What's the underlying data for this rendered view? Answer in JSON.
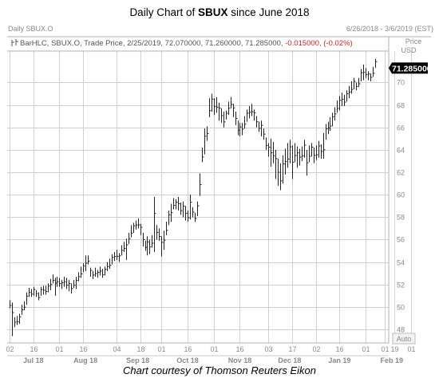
{
  "header": {
    "title_prefix": "Daily Chart of ",
    "title_ticker": "SBUX",
    "title_suffix": " since June 2018",
    "date_range": "6/26/2018 - 3/6/2019 (EST)",
    "symbol_label": "Daily SBUX.O"
  },
  "axis": {
    "price_label": "Price",
    "currency": "USD",
    "auto_label": "Auto",
    "last_price": "71.285000"
  },
  "caption": "Chart courtesy of Thomson Reuters Eikon",
  "colors": {
    "bars": "#222222",
    "grid": "#d0d0d0",
    "last_price_badge": "#000000",
    "negative": "#e02020"
  },
  "chart_data": {
    "type": "ohlc",
    "title": "Daily Chart of SBUX since June 2018",
    "legend": {
      "icon": "bar-hlc-icon",
      "prefix": "BarHLC, SBUX.O, Trade Price, 2/25/2019, 72.070000, 71.260000, 71.285000, ",
      "change": "-0.015000, (-0.02%)"
    },
    "ylim": [
      46.8,
      72.8
    ],
    "y_ticks": [
      48,
      50,
      52,
      54,
      56,
      58,
      60,
      62,
      64,
      66,
      68,
      70
    ],
    "y_tick_labels": [
      "48",
      "50",
      "52",
      "54",
      "56",
      "58",
      "60",
      "62",
      "64",
      "66",
      "68",
      "70"
    ],
    "x_day_ticks": [
      {
        "label": "02",
        "x": 0
      },
      {
        "label": "16",
        "x": 10
      },
      {
        "label": "01",
        "x": 21
      },
      {
        "label": "16",
        "x": 31
      },
      {
        "label": "04",
        "x": 45
      },
      {
        "label": "18",
        "x": 55
      },
      {
        "label": "01",
        "x": 64
      },
      {
        "label": "16",
        "x": 75
      },
      {
        "label": "01",
        "x": 86
      },
      {
        "label": "16",
        "x": 97
      },
      {
        "label": "03",
        "x": 109
      },
      {
        "label": "17",
        "x": 119
      },
      {
        "label": "02",
        "x": 129
      },
      {
        "label": "16",
        "x": 139
      },
      {
        "label": "01",
        "x": 150
      },
      {
        "label": "19",
        "x": 162
      },
      {
        "label": "01",
        "x": 169
      }
    ],
    "x_month_labels": [
      {
        "label": "Jul 18",
        "x": 10
      },
      {
        "label": "Aug 18",
        "x": 32
      },
      {
        "label": "Sep 18",
        "x": 54
      },
      {
        "label": "Oct 18",
        "x": 75
      },
      {
        "label": "Nov 18",
        "x": 97
      },
      {
        "label": "Dec 18",
        "x": 118
      },
      {
        "label": "Jan 19",
        "x": 139
      },
      {
        "label": "Feb 19",
        "x": 161
      }
    ],
    "bars": [
      [
        50.6,
        49.9
      ],
      [
        50.4,
        47.4
      ],
      [
        49.1,
        48.2
      ],
      [
        49.2,
        48.4
      ],
      [
        49.4,
        48.5
      ],
      [
        50.2,
        49.3
      ],
      [
        50.5,
        49.7
      ],
      [
        51.3,
        50.2
      ],
      [
        51.7,
        50.9
      ],
      [
        51.6,
        50.9
      ],
      [
        51.8,
        51.0
      ],
      [
        51.5,
        50.9
      ],
      [
        51.3,
        50.6
      ],
      [
        51.8,
        51.0
      ],
      [
        51.9,
        51.1
      ],
      [
        51.9,
        51.1
      ],
      [
        52.1,
        51.3
      ],
      [
        52.5,
        51.5
      ],
      [
        52.9,
        52.1
      ],
      [
        52.6,
        51.0
      ],
      [
        52.7,
        51.8
      ],
      [
        52.6,
        51.8
      ],
      [
        52.4,
        51.6
      ],
      [
        52.7,
        51.8
      ],
      [
        52.6,
        51.6
      ],
      [
        52.4,
        51.4
      ],
      [
        52.1,
        51.2
      ],
      [
        52.4,
        51.7
      ],
      [
        52.7,
        51.6
      ],
      [
        53.1,
        52.3
      ],
      [
        53.6,
        52.6
      ],
      [
        53.9,
        53.1
      ],
      [
        54.6,
        53.2
      ],
      [
        54.6,
        53.8
      ],
      [
        53.5,
        52.7
      ],
      [
        53.2,
        52.5
      ],
      [
        53.5,
        52.7
      ],
      [
        53.3,
        52.6
      ],
      [
        53.6,
        52.8
      ],
      [
        53.4,
        52.6
      ],
      [
        53.6,
        52.8
      ],
      [
        54.0,
        53.2
      ],
      [
        54.3,
        53.4
      ],
      [
        54.7,
        53.8
      ],
      [
        54.9,
        54.1
      ],
      [
        55.1,
        54.2
      ],
      [
        54.8,
        54.0
      ],
      [
        55.5,
        54.6
      ],
      [
        55.8,
        54.9
      ],
      [
        56.1,
        54.2
      ],
      [
        56.6,
        55.6
      ],
      [
        57.3,
        56.2
      ],
      [
        57.5,
        56.6
      ],
      [
        57.7,
        56.9
      ],
      [
        57.9,
        57.0
      ],
      [
        57.4,
        56.4
      ],
      [
        56.6,
        55.4
      ],
      [
        55.9,
        55.0
      ],
      [
        56.3,
        54.6
      ],
      [
        56.0,
        54.7
      ],
      [
        56.4,
        55.3
      ],
      [
        59.8,
        54.9
      ],
      [
        57.3,
        56.0
      ],
      [
        57.0,
        55.9
      ],
      [
        56.3,
        54.5
      ],
      [
        56.8,
        55.1
      ],
      [
        57.6,
        56.4
      ],
      [
        58.6,
        57.3
      ],
      [
        59.2,
        57.6
      ],
      [
        59.7,
        58.7
      ],
      [
        59.6,
        58.7
      ],
      [
        59.8,
        58.6
      ],
      [
        59.3,
        58.2
      ],
      [
        59.4,
        58.0
      ],
      [
        59.0,
        57.7
      ],
      [
        58.6,
        57.6
      ],
      [
        60.0,
        57.8
      ],
      [
        58.9,
        58.0
      ],
      [
        58.4,
        57.6
      ],
      [
        59.4,
        58.1
      ],
      [
        61.9,
        59.9
      ],
      [
        64.2,
        62.9
      ],
      [
        65.9,
        63.6
      ],
      [
        66.1,
        64.8
      ],
      [
        68.6,
        66.9
      ],
      [
        69.0,
        67.4
      ],
      [
        68.6,
        67.1
      ],
      [
        68.7,
        67.3
      ],
      [
        68.2,
        66.6
      ],
      [
        67.7,
        66.4
      ],
      [
        67.4,
        66.0
      ],
      [
        67.5,
        66.7
      ],
      [
        68.3,
        67.1
      ],
      [
        68.7,
        67.7
      ],
      [
        68.1,
        66.9
      ],
      [
        67.4,
        66.2
      ],
      [
        66.6,
        65.3
      ],
      [
        66.4,
        65.2
      ],
      [
        66.4,
        65.3
      ],
      [
        67.0,
        65.9
      ],
      [
        67.6,
        66.5
      ],
      [
        67.9,
        66.8
      ],
      [
        68.1,
        67.0
      ],
      [
        67.6,
        66.6
      ],
      [
        67.0,
        66.0
      ],
      [
        66.5,
        65.6
      ],
      [
        66.6,
        65.2
      ],
      [
        65.9,
        64.9
      ],
      [
        65.1,
        64.0
      ],
      [
        64.6,
        63.4
      ],
      [
        65.0,
        62.5
      ],
      [
        64.7,
        62.8
      ],
      [
        64.0,
        61.4
      ],
      [
        63.2,
        60.8
      ],
      [
        62.8,
        60.4
      ],
      [
        63.5,
        61.0
      ],
      [
        64.1,
        61.8
      ],
      [
        64.6,
        62.4
      ],
      [
        64.9,
        62.8
      ],
      [
        64.4,
        61.4
      ],
      [
        64.6,
        62.9
      ],
      [
        64.3,
        62.4
      ],
      [
        64.1,
        62.6
      ],
      [
        64.3,
        63.0
      ],
      [
        64.9,
        63.3
      ],
      [
        64.0,
        61.7
      ],
      [
        64.4,
        62.9
      ],
      [
        64.6,
        63.4
      ],
      [
        64.2,
        62.8
      ],
      [
        64.4,
        63.1
      ],
      [
        64.8,
        63.3
      ],
      [
        64.5,
        63.2
      ],
      [
        65.5,
        63.2
      ],
      [
        66.3,
        64.9
      ],
      [
        66.5,
        65.4
      ],
      [
        66.9,
        65.7
      ],
      [
        67.3,
        66.1
      ],
      [
        67.8,
        66.6
      ],
      [
        68.4,
        67.3
      ],
      [
        68.8,
        67.5
      ],
      [
        69.1,
        67.9
      ],
      [
        68.9,
        67.9
      ],
      [
        69.3,
        68.3
      ],
      [
        69.7,
        68.6
      ],
      [
        70.1,
        69.0
      ],
      [
        70.4,
        69.4
      ],
      [
        70.0,
        69.3
      ],
      [
        70.4,
        69.6
      ],
      [
        71.2,
        70.1
      ],
      [
        71.6,
        70.2
      ],
      [
        71.3,
        70.4
      ],
      [
        71.0,
        70.2
      ],
      [
        70.8,
        70.1
      ],
      [
        71.4,
        70.5
      ],
      [
        72.1,
        71.3
      ]
    ]
  }
}
